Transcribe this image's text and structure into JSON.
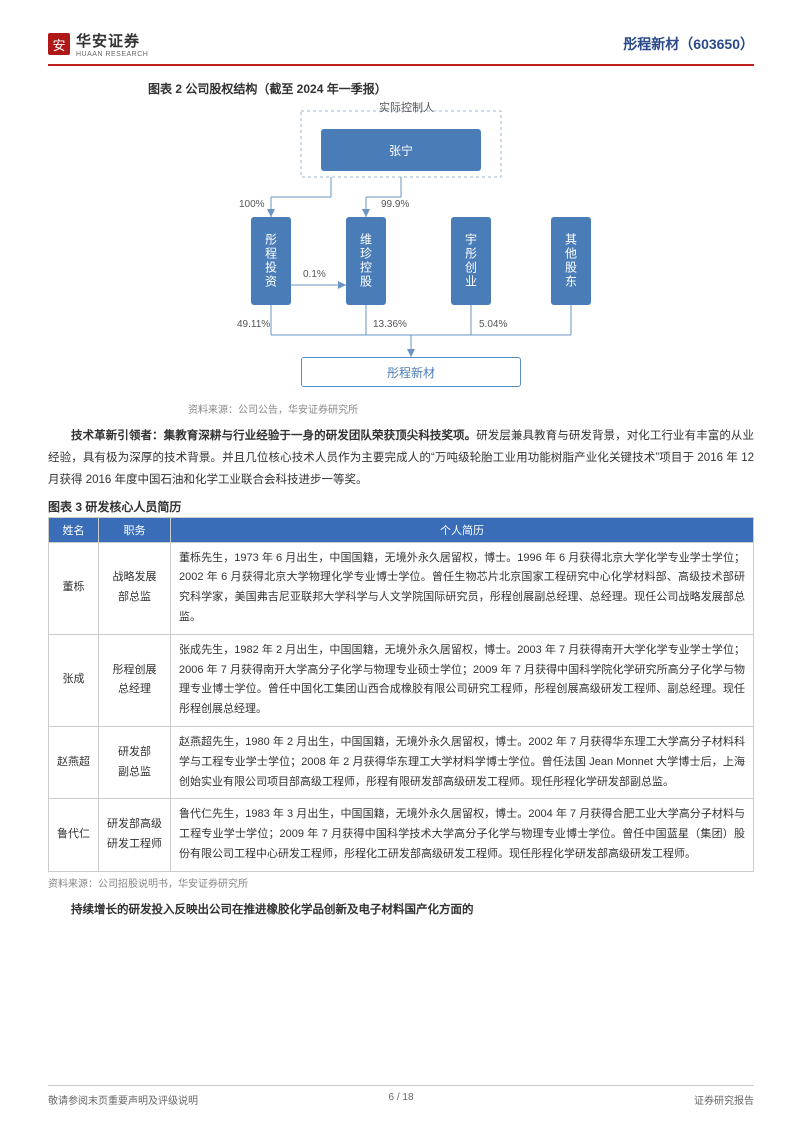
{
  "header": {
    "logo_char": "安",
    "brand_cn": "华安证券",
    "brand_en": "HUAAN RESEARCH",
    "company_name": "彤程新材（603650）"
  },
  "chart2": {
    "title": "图表 2 公司股权结构（截至 2024 年一季报）",
    "top_label": "实际控制人",
    "nodes": {
      "zhangning": "张宁",
      "tc_invest": "彤程投资",
      "weizhen": "维珍控股",
      "yutong": "宇彤创业",
      "other": "其他股东",
      "tc_xincai": "彤程新材"
    },
    "edges": {
      "p100": "100%",
      "p999": "99.9%",
      "p01": "0.1%",
      "p4911": "49.11%",
      "p1336": "13.36%",
      "p504": "5.04%"
    },
    "source": "资料来源：公司公告，华安证券研究所",
    "colors": {
      "node_fill": "#4a7db8",
      "node_border": "#5a8dc8",
      "line": "#6a94c4",
      "bg": "#ffffff"
    }
  },
  "para1_lead": "技术革新引领者：集教育深耕与行业经验于一身的研发团队荣获顶尖科技奖项。",
  "para1_body": "研发层兼具教育与研发背景，对化工行业有丰富的从业经验，具有极为深厚的技术背景。并且几位核心技术人员作为主要完成人的“万吨级轮胎工业用功能树脂产业化关键技术”项目于 2016 年 12 月获得 2016 年度中国石油和化学工业联合会科技进步一等奖。",
  "table3": {
    "title": "图表 3 研发核心人员简历",
    "columns": [
      "姓名",
      "职务",
      "个人简历"
    ],
    "rows": [
      {
        "name": "董栎",
        "role": "战略发展部总监",
        "bio": "董栎先生，1973 年 6 月出生，中国国籍，无境外永久居留权，博士。1996 年 6 月获得北京大学化学专业学士学位；2002 年 6 月获得北京大学物理化学专业博士学位。曾任生物芯片北京国家工程研究中心化学材料部、高级技术部研究科学家，美国弗吉尼亚联邦大学科学与人文学院国际研究员，彤程创展副总经理、总经理。现任公司战略发展部总监。"
      },
      {
        "name": "张成",
        "role": "彤程创展总经理",
        "bio": "张成先生，1982 年 2 月出生，中国国籍，无境外永久居留权，博士。2003 年 7 月获得南开大学化学专业学士学位；2006 年 7 月获得南开大学高分子化学与物理专业硕士学位；2009 年 7 月获得中国科学院化学研究所高分子化学与物理专业博士学位。曾任中国化工集团山西合成橡胶有限公司研究工程师，彤程创展高级研发工程师、副总经理。现任彤程创展总经理。"
      },
      {
        "name": "赵燕超",
        "role": "研发部副总监",
        "bio": "赵燕超先生，1980 年 2 月出生，中国国籍，无境外永久居留权，博士。2002 年 7 月获得华东理工大学高分子材料科学与工程专业学士学位；2008 年 2 月获得华东理工大学材料学博士学位。曾任法国 Jean Monnet 大学博士后，上海创始实业有限公司项目部高级工程师，彤程有限研发部高级研发工程师。现任彤程化学研发部副总监。"
      },
      {
        "name": "鲁代仁",
        "role": "研发部高级研发工程师",
        "bio": "鲁代仁先生，1983 年 3 月出生，中国国籍，无境外永久居留权，博士。2004 年 7 月获得合肥工业大学高分子材料与工程专业学士学位；2009 年 7 月获得中国科学技术大学高分子化学与物理专业博士学位。曾任中国蓝星（集团）股份有限公司工程中心研发工程师，彤程化工研发部高级研发工程师。现任彤程化学研发部高级研发工程师。"
      }
    ],
    "source": "资料来源：公司招股说明书，华安证券研究所",
    "header_bg": "#3a6db8"
  },
  "para2_lead": "持续增长的研发投入反映出公司在推进橡胶化学品创新及电子材料国产化方面的",
  "footer": {
    "left": "敬请参阅末页重要声明及评级说明",
    "center": "6 / 18",
    "right": "证券研究报告"
  }
}
